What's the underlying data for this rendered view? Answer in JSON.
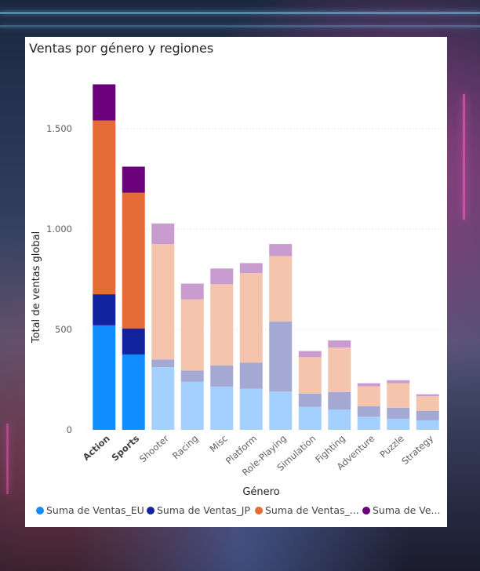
{
  "chart_data": {
    "type": "bar",
    "stacked": true,
    "title": "Ventas por género y regiones",
    "xlabel": "Género",
    "ylabel": "Total de ventas global",
    "ylim": [
      0,
      1800
    ],
    "yticks": [
      0,
      500,
      1000,
      1500
    ],
    "ytick_labels": [
      "0",
      "500",
      "1.000",
      "1.500"
    ],
    "grid": true,
    "legend_position": "bottom",
    "categories": [
      "Action",
      "Sports",
      "Shooter",
      "Racing",
      "Misc",
      "Platform",
      "Role-Playing",
      "Simulation",
      "Fighting",
      "Adventure",
      "Puzzle",
      "Strategy"
    ],
    "highlighted_categories": [
      "Action",
      "Sports"
    ],
    "series": [
      {
        "name": "Suma de Ventas_EU",
        "legend_label": "Suma de Ventas_EU",
        "values": [
          520,
          375,
          312,
          240,
          215,
          205,
          190,
          115,
          100,
          65,
          55,
          47
        ]
      },
      {
        "name": "Suma de Ventas_JP",
        "legend_label": "Suma de Ventas_JP",
        "values": [
          155,
          130,
          38,
          55,
          105,
          130,
          350,
          65,
          88,
          52,
          55,
          48
        ]
      },
      {
        "name": "Suma de Ventas_...",
        "legend_label": "Suma de Ventas_...",
        "values": [
          865,
          675,
          575,
          355,
          405,
          445,
          325,
          182,
          222,
          100,
          122,
          72
        ]
      },
      {
        "name": "Suma de Ve...",
        "legend_label": "Suma de Ve...",
        "values": [
          180,
          130,
          102,
          78,
          78,
          50,
          60,
          30,
          35,
          15,
          15,
          10
        ]
      }
    ],
    "colors": {
      "full": [
        "#118dff",
        "#12239e",
        "#e66c37",
        "#6b007b"
      ],
      "faded": [
        "#a3d0ff",
        "#a4a9d4",
        "#f4c4ad",
        "#c89ccf"
      ]
    }
  }
}
